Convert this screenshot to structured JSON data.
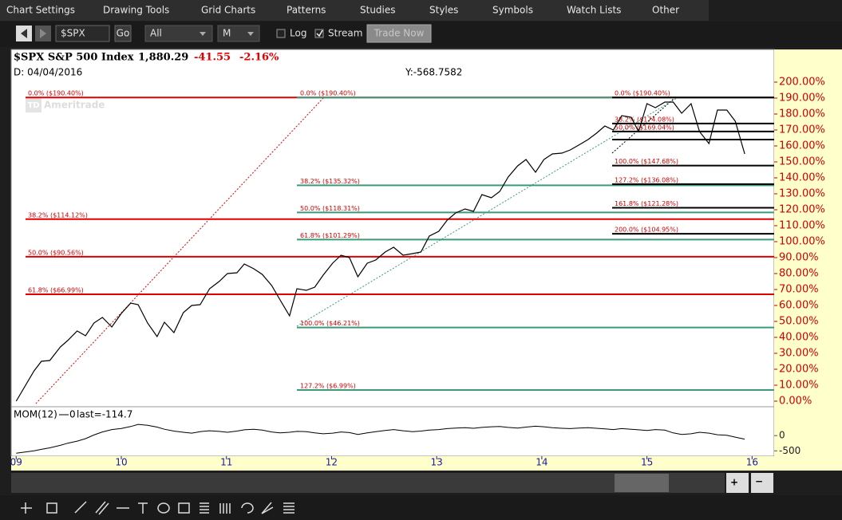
{
  "menu": [
    "Chart Settings",
    "Drawing Tools",
    "Grid Charts",
    "Patterns",
    "Studies",
    "Styles",
    "Symbols",
    "Watch Lists",
    "Other"
  ],
  "toolbar": {
    "symbol": "$SPX",
    "go": "Go",
    "range": "All",
    "period": "M",
    "log": "Log",
    "stream": "Stream",
    "trade": "Trade Now"
  },
  "header": {
    "name": "$SPX S&P 500 Index",
    "price": "1,880.29",
    "change": "-41.55",
    "change_pct": "-2.16%",
    "date": "D: 04/04/2016",
    "cursor": "Y:-568.7582",
    "watermark": "Ameritrade"
  },
  "chart_data": {
    "type": "line",
    "x": [
      2009.0,
      2009.17,
      2009.24,
      2009.32,
      2009.42,
      2009.49,
      2009.58,
      2009.66,
      2009.74,
      2009.82,
      2009.91,
      2010.0,
      2010.09,
      2010.16,
      2010.25,
      2010.34,
      2010.41,
      2010.5,
      2010.59,
      2010.67,
      2010.75,
      2010.84,
      2010.93,
      2011.01,
      2011.1,
      2011.17,
      2011.26,
      2011.34,
      2011.43,
      2011.51,
      2011.6,
      2011.67,
      2011.76,
      2011.84,
      2011.92,
      2012.01,
      2012.09,
      2012.17,
      2012.25,
      2012.34,
      2012.42,
      2012.51,
      2012.59,
      2012.68,
      2012.77,
      2012.85,
      2012.93,
      2013.02,
      2013.1,
      2013.18,
      2013.27,
      2013.35,
      2013.43,
      2013.52,
      2013.6,
      2013.68,
      2013.77,
      2013.85,
      2013.94,
      2014.02,
      2014.1,
      2014.19,
      2014.27,
      2014.35,
      2014.44,
      2014.52,
      2014.6,
      2014.68,
      2014.76,
      2014.85,
      2014.92,
      2015.0,
      2015.08,
      2015.17,
      2015.25,
      2015.33,
      2015.42,
      2015.5,
      2015.59,
      2015.67,
      2015.76,
      2015.84,
      2015.93
    ],
    "series": [
      {
        "color": "#000000",
        "values": [
          0,
          19,
          25,
          25.5,
          34,
          38,
          44,
          41,
          49,
          52.5,
          46.5,
          55,
          61.5,
          60.5,
          49,
          40.5,
          49.5,
          43,
          55.5,
          60,
          60.5,
          70.5,
          75,
          80,
          80.5,
          86,
          83,
          79.5,
          72.5,
          63.5,
          53.5,
          70.5,
          69.5,
          71.5,
          79,
          86.5,
          91.5,
          90,
          78,
          86.5,
          88.5,
          93.5,
          96.5,
          91.5,
          92.5,
          93.5,
          103.5,
          106.5,
          113.5,
          118,
          120.5,
          119,
          129.5,
          127.5,
          131.5,
          140.5,
          147.5,
          151.5,
          143.5,
          151.5,
          155,
          155.5,
          157.5,
          160.5,
          164,
          168,
          172.5,
          170,
          179,
          178,
          169,
          186.5,
          184,
          187.5,
          187.5,
          180.5,
          186.5,
          169,
          161.5,
          182.5,
          182.5,
          175.5,
          155
        ]
      }
    ],
    "xlim": [
      2008.96,
      2016.21
    ],
    "xticks": [
      {
        "value": 2009,
        "label": "09"
      },
      {
        "value": 2010,
        "label": "10"
      },
      {
        "value": 2011,
        "label": "11"
      },
      {
        "value": 2012,
        "label": "12"
      },
      {
        "value": 2013,
        "label": "13"
      },
      {
        "value": 2014,
        "label": "14"
      },
      {
        "value": 2015,
        "label": "15"
      },
      {
        "value": 2016,
        "label": "16"
      }
    ],
    "ylim": [
      -3.5,
      220
    ],
    "yticks": [
      {
        "value": 0,
        "label": "0.00%"
      },
      {
        "value": 10,
        "label": "10.00%"
      },
      {
        "value": 20,
        "label": "20.00%"
      },
      {
        "value": 30,
        "label": "30.00%"
      },
      {
        "value": 40,
        "label": "40.00%"
      },
      {
        "value": 50,
        "label": "50.00%"
      },
      {
        "value": 60,
        "label": "60.00%"
      },
      {
        "value": 70,
        "label": "70.00%"
      },
      {
        "value": 80,
        "label": "80.00%"
      },
      {
        "value": 90,
        "label": "90.00%"
      },
      {
        "value": 100,
        "label": "100.00%"
      },
      {
        "value": 110,
        "label": "110.00%"
      },
      {
        "value": 120,
        "label": "120.00%"
      },
      {
        "value": 130,
        "label": "130.00%"
      },
      {
        "value": 140,
        "label": "140.00%"
      },
      {
        "value": 150,
        "label": "150.00%"
      },
      {
        "value": 160,
        "label": "160.00%"
      },
      {
        "value": 170,
        "label": "170.00%"
      },
      {
        "value": 180,
        "label": "180.00%"
      },
      {
        "value": 190,
        "label": "190.00%"
      },
      {
        "value": 200,
        "label": "200.00%"
      }
    ],
    "fib": [
      {
        "color": "#e00000",
        "levels": [
          {
            "value": 190.4,
            "label": "0.0% ($190.40%)"
          },
          {
            "value": 114.12,
            "label": "38.2% ($114.12%)"
          },
          {
            "value": 90.56,
            "label": "50.0% ($90.56%)"
          },
          {
            "value": 66.99,
            "label": "61.8% ($66.99%)"
          }
        ]
      },
      {
        "color": "#3a9a7a",
        "levels": [
          {
            "value": 190.4,
            "label": "0.0% ($190.40%)"
          },
          {
            "value": 135.32,
            "label": "38.2% ($135.32%)"
          },
          {
            "value": 118.31,
            "label": "50.0% ($118.31%)"
          },
          {
            "value": 101.29,
            "label": "61.8% ($101.29%)"
          },
          {
            "value": 46.21,
            "label": "100.0% ($46.21%)"
          },
          {
            "value": 6.99,
            "label": "127.2% ($6.99%)"
          }
        ]
      },
      {
        "color": "#000000",
        "levels": [
          {
            "value": 190.4,
            "label": "0.0% ($190.40%)"
          },
          {
            "value": 174.08,
            "label": "38.2% ($174.08%)"
          },
          {
            "value": 169.04,
            "label": "50.0% ($169.04%)"
          },
          {
            "value": 164,
            "label": null
          },
          {
            "value": 147.68,
            "label": "100.0% ($147.68%)"
          },
          {
            "value": 136.08,
            "label": "127.2% ($136.08%)"
          },
          {
            "value": 121.28,
            "label": "161.8% ($121.28%)"
          },
          {
            "value": 104.95,
            "label": "200.0% ($104.95%)"
          }
        ]
      }
    ],
    "mom": {
      "label": "MOM(12)",
      "param": "0",
      "last": "last=-114.7",
      "color": "#000000",
      "values": [
        -580,
        -500,
        -450,
        -400,
        -320,
        -250,
        -180,
        -100,
        20,
        120,
        200,
        237,
        300,
        370,
        340,
        280,
        210,
        150,
        110,
        80,
        130,
        160,
        140,
        110,
        150,
        190,
        210,
        180,
        120,
        90,
        110,
        140,
        130,
        90,
        60,
        80,
        120,
        100,
        40,
        90,
        130,
        170,
        200,
        160,
        130,
        150,
        180,
        200,
        230,
        250,
        260,
        240,
        270,
        290,
        300,
        270,
        250,
        280,
        310,
        290,
        260,
        240,
        230,
        250,
        260,
        240,
        220,
        200,
        230,
        210,
        190,
        170,
        200,
        180,
        90,
        40,
        60,
        110,
        80,
        30,
        10,
        -50,
        -114.7
      ],
      "ylim": [
        -650,
        870
      ],
      "yticks": [
        0,
        -500
      ]
    }
  }
}
